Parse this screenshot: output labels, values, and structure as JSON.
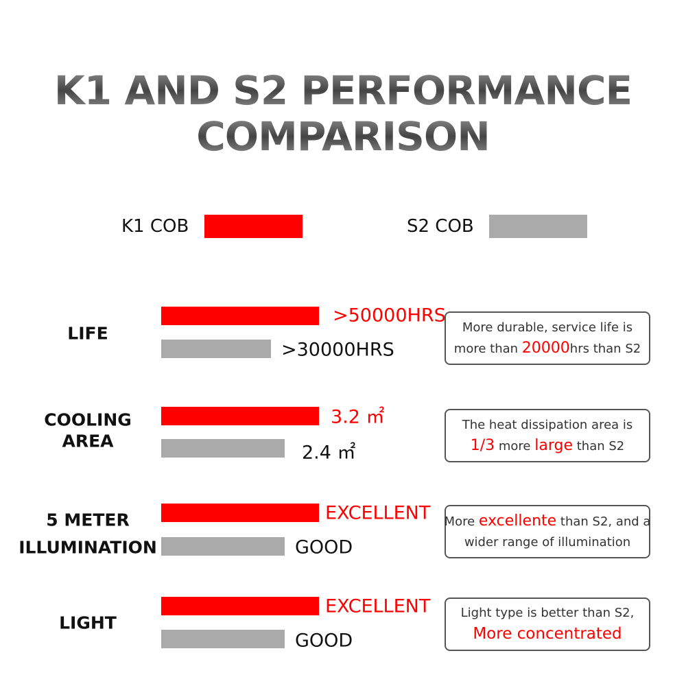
{
  "title": [
    "K1 AND S2 PERFORMANCE",
    "COMPARISON"
  ],
  "legend": [
    {
      "name": "K1 COB",
      "color": "#ff0000"
    },
    {
      "name": "S2 COB",
      "color": "#aaaaaa"
    }
  ],
  "rows": [
    {
      "label": [
        "LIFE"
      ],
      "k1": ">50000HRS",
      "s2": ">30000HRS",
      "note": [
        [
          {
            "text": "More durable, service life is"
          }
        ],
        [
          {
            "text": "more than "
          },
          {
            "text": "20000",
            "highlight": true
          },
          {
            "text": "hrs than S2"
          }
        ]
      ]
    },
    {
      "label": [
        "COOLING",
        "AREA"
      ],
      "k1": "3.2 ㎡",
      "s2": "2.4 ㎡",
      "note": [
        [
          {
            "text": "The heat dissipation area is"
          }
        ],
        [
          {
            "text": "1/3",
            "highlight": true
          },
          {
            "text": " more "
          },
          {
            "text": "large",
            "highlight": true
          },
          {
            "text": " than S2"
          }
        ]
      ]
    },
    {
      "label": [
        "5 METER",
        "ILLUMINATION"
      ],
      "k1": "EXCELLENT",
      "s2": "GOOD",
      "note": [
        [
          {
            "text": "More "
          },
          {
            "text": "excellente",
            "highlight": true
          },
          {
            "text": " than S2, and a"
          }
        ],
        [
          {
            "text": "wider range of illumination"
          }
        ]
      ]
    },
    {
      "label": [
        "LIGHT"
      ],
      "k1": "EXCELLENT",
      "s2": "GOOD",
      "note": [
        [
          {
            "text": "Light type is better than S2,"
          }
        ],
        [
          {
            "text": "More concentrated",
            "highlight": true,
            "large": true
          }
        ]
      ]
    }
  ]
}
